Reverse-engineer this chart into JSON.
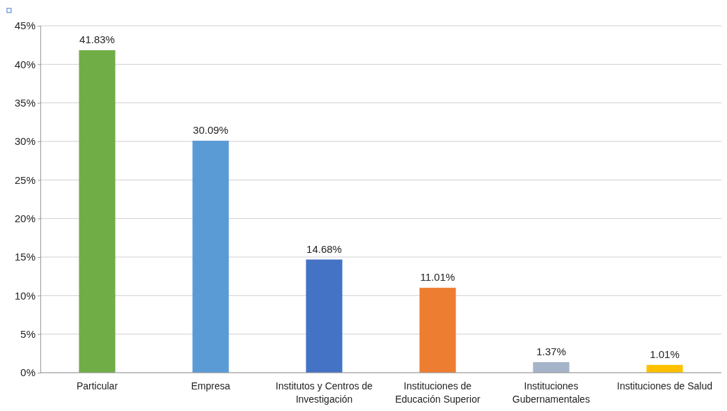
{
  "chart_data": {
    "type": "bar",
    "categories": [
      "Particular",
      "Empresa",
      "Institutos  y Centros de Investigación",
      "Instituciones de Educación Superior",
      "Instituciones Gubernamentales",
      "Instituciones de Salud"
    ],
    "values": [
      41.83,
      30.09,
      14.68,
      11.01,
      1.37,
      1.01
    ],
    "colors": [
      "#70ad47",
      "#5b9bd5",
      "#4472c4",
      "#ed7d31",
      "#a5b4c8",
      "#ffc000"
    ],
    "value_labels": [
      "41.83%",
      "30.09%",
      "14.68%",
      "11.01%",
      "1.37%",
      "1.01%"
    ],
    "ylim": [
      0,
      45
    ],
    "yticks": [
      {
        "value": 0,
        "label": "0%"
      },
      {
        "value": 5,
        "label": "5%"
      },
      {
        "value": 10,
        "label": "10%"
      },
      {
        "value": 15,
        "label": "15%"
      },
      {
        "value": 20,
        "label": "20%"
      },
      {
        "value": 25,
        "label": "25%"
      },
      {
        "value": 30,
        "label": "30%"
      },
      {
        "value": 35,
        "label": "35%"
      },
      {
        "value": 40,
        "label": "40%"
      },
      {
        "value": 45,
        "label": "45%"
      }
    ],
    "grid": "y"
  }
}
